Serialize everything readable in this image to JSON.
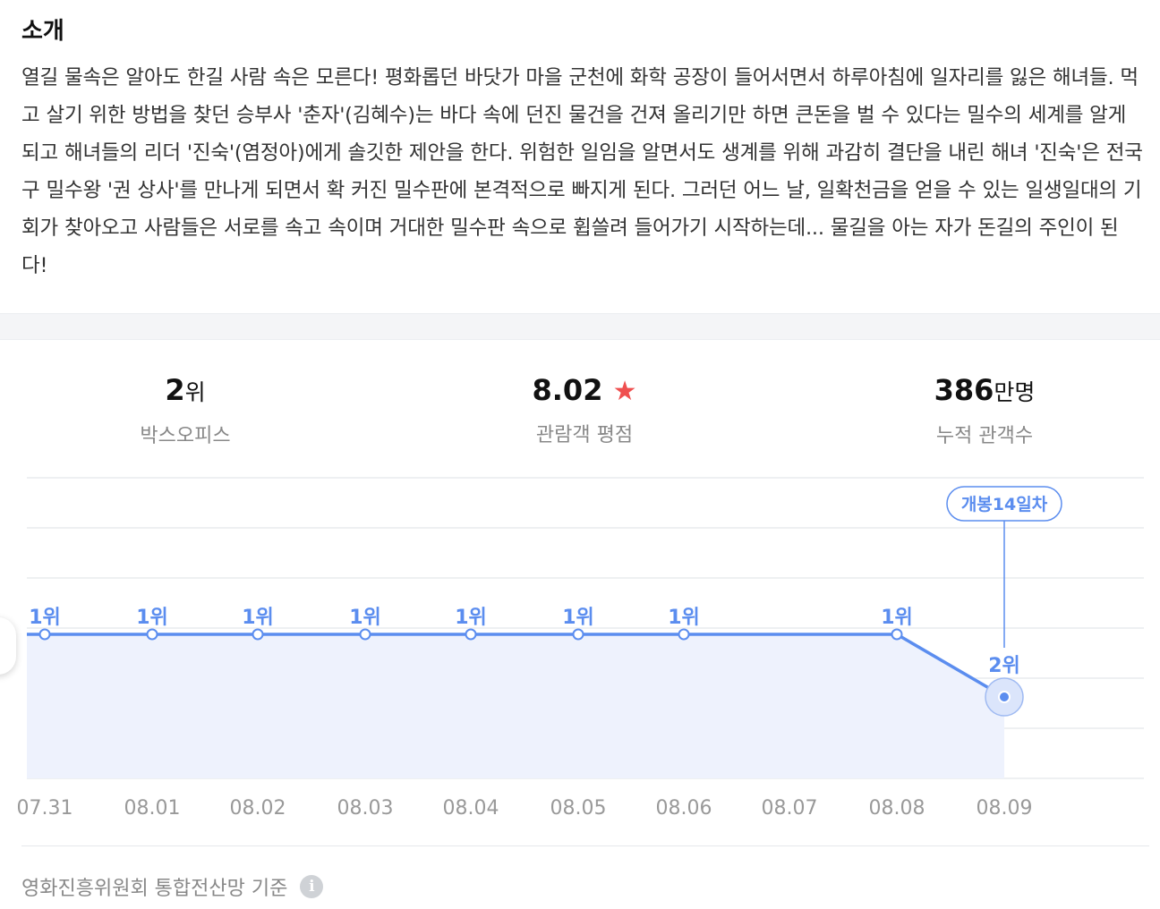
{
  "intro": {
    "title": "소개",
    "body": "열길 물속은 알아도 한길 사람 속은 모른다! 평화롭던 바닷가 마을 군천에 화학 공장이 들어서면서 하루아침에 일자리를 잃은 해녀들. 먹고 살기 위한 방법을 찾던 승부사 '춘자'(김혜수)는 바다 속에 던진 물건을 건져 올리기만 하면 큰돈을 벌 수 있다는 밀수의 세계를 알게 되고 해녀들의 리더 '진숙'(염정아)에게 솔깃한 제안을 한다. 위험한 일임을 알면서도 생계를 위해 과감히 결단을 내린 해녀 '진숙'은 전국구 밀수왕 '권 상사'를 만나게 되면서 확 커진 밀수판에 본격적으로 빠지게 된다. 그러던 어느 날, 일확천금을 얻을 수 있는 일생일대의 기회가 찾아오고 사람들은 서로를 속고 속이며 거대한 밀수판 속으로 휩쓸려 들어가기 시작하는데... 물길을 아는 자가 돈길의 주인이 된다!"
  },
  "stats": {
    "boxoffice": {
      "value": "2",
      "unit": "위",
      "label": "박스오피스"
    },
    "rating": {
      "value": "8.02",
      "star": "★",
      "label": "관람객 평점"
    },
    "audience": {
      "value": "386",
      "unit": "만명",
      "label": "누적 관객수"
    }
  },
  "chart_data": {
    "type": "line",
    "x": [
      "07.31",
      "08.01",
      "08.02",
      "08.03",
      "08.04",
      "08.05",
      "08.06",
      "08.07",
      "08.08",
      "08.09"
    ],
    "x_display": [
      "07.31",
      "08.01",
      "08.02",
      "08.03",
      "08.04",
      "08.05",
      "08.06",
      "08.07",
      "08.08",
      "08.09"
    ],
    "y": [
      1,
      1,
      1,
      1,
      1,
      1,
      1,
      null,
      1,
      2
    ],
    "point_labels": [
      "1위",
      "1위",
      "1위",
      "1위",
      "1위",
      "1위",
      "1위",
      "",
      "1위",
      "2위"
    ],
    "highlight_label": "개봉14일차",
    "grid": true,
    "colors": {
      "line": "#5b8def",
      "fill": "#eef2fd",
      "label": "#5b8def",
      "grid": "#e9ebee",
      "axis_text": "#999999"
    }
  },
  "footer": {
    "source": "영화진흥위원회 통합전산망 기준",
    "info_icon": "i"
  }
}
